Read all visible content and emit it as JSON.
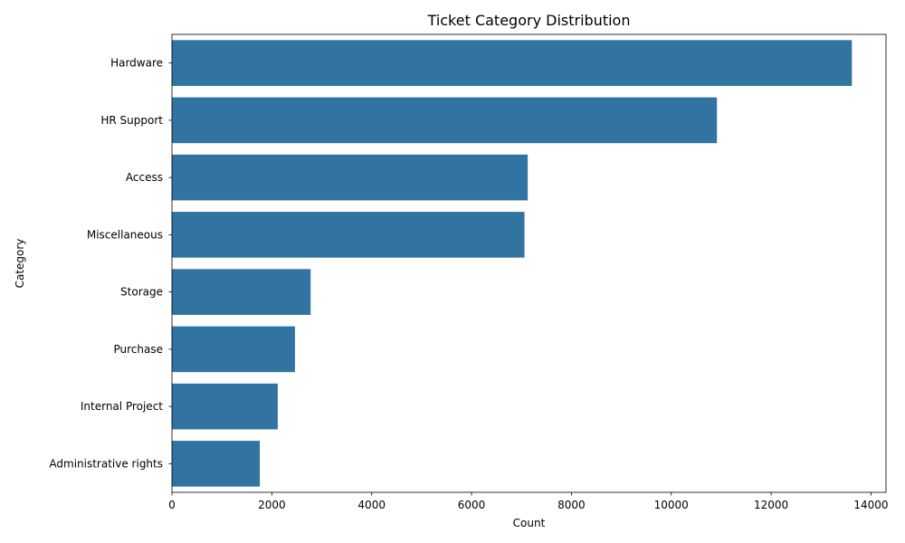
{
  "chart_data": {
    "type": "bar",
    "orientation": "horizontal",
    "title": "Ticket Category Distribution",
    "xlabel": "Count",
    "ylabel": "Category",
    "categories": [
      "Hardware",
      "HR Support",
      "Access",
      "Miscellaneous",
      "Storage",
      "Purchase",
      "Internal Project",
      "Administrative rights"
    ],
    "values": [
      13617,
      10915,
      7125,
      7060,
      2777,
      2464,
      2119,
      1760
    ],
    "xlim": [
      0,
      14300
    ],
    "xticks": [
      0,
      2000,
      4000,
      6000,
      8000,
      10000,
      12000,
      14000
    ],
    "grid": false,
    "legend": "none",
    "bar_color": "#3274a1"
  }
}
